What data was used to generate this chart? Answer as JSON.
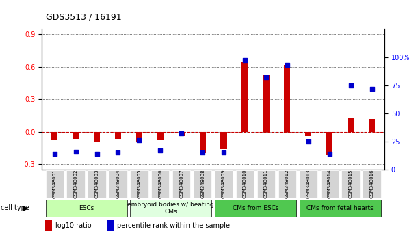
{
  "title": "GDS3513 / 16191",
  "samples": [
    "GSM348001",
    "GSM348002",
    "GSM348003",
    "GSM348004",
    "GSM348005",
    "GSM348006",
    "GSM348007",
    "GSM348008",
    "GSM348009",
    "GSM348010",
    "GSM348011",
    "GSM348012",
    "GSM348013",
    "GSM348014",
    "GSM348015",
    "GSM348016"
  ],
  "log10_ratio": [
    -0.08,
    -0.07,
    -0.09,
    -0.07,
    -0.09,
    -0.08,
    -0.04,
    -0.2,
    -0.16,
    0.65,
    0.52,
    0.62,
    -0.04,
    -0.22,
    0.13,
    0.12
  ],
  "percentile_rank": [
    14,
    16,
    14,
    15,
    26,
    17,
    32,
    15,
    15,
    97,
    82,
    93,
    25,
    14,
    75,
    72
  ],
  "cell_types": [
    {
      "label": "ESCs",
      "start": 0,
      "end": 3,
      "color": "#90EE90"
    },
    {
      "label": "embryoid bodies w/ beating\nCMs",
      "start": 4,
      "end": 7,
      "color": "#b8ffb8"
    },
    {
      "label": "CMs from ESCs",
      "start": 8,
      "end": 11,
      "color": "#3CB371"
    },
    {
      "label": "CMs from fetal hearts",
      "start": 12,
      "end": 15,
      "color": "#3CB371"
    }
  ],
  "ylim_left": [
    -0.35,
    0.95
  ],
  "ylim_right": [
    0,
    125
  ],
  "yticks_left": [
    -0.3,
    0.0,
    0.3,
    0.6,
    0.9
  ],
  "yticks_right": [
    0,
    25,
    50,
    75,
    100
  ],
  "bar_color_red": "#CC0000",
  "bar_color_blue": "#0000CC",
  "hline_color": "#CC0000",
  "grid_color": "black",
  "bg_color": "white"
}
